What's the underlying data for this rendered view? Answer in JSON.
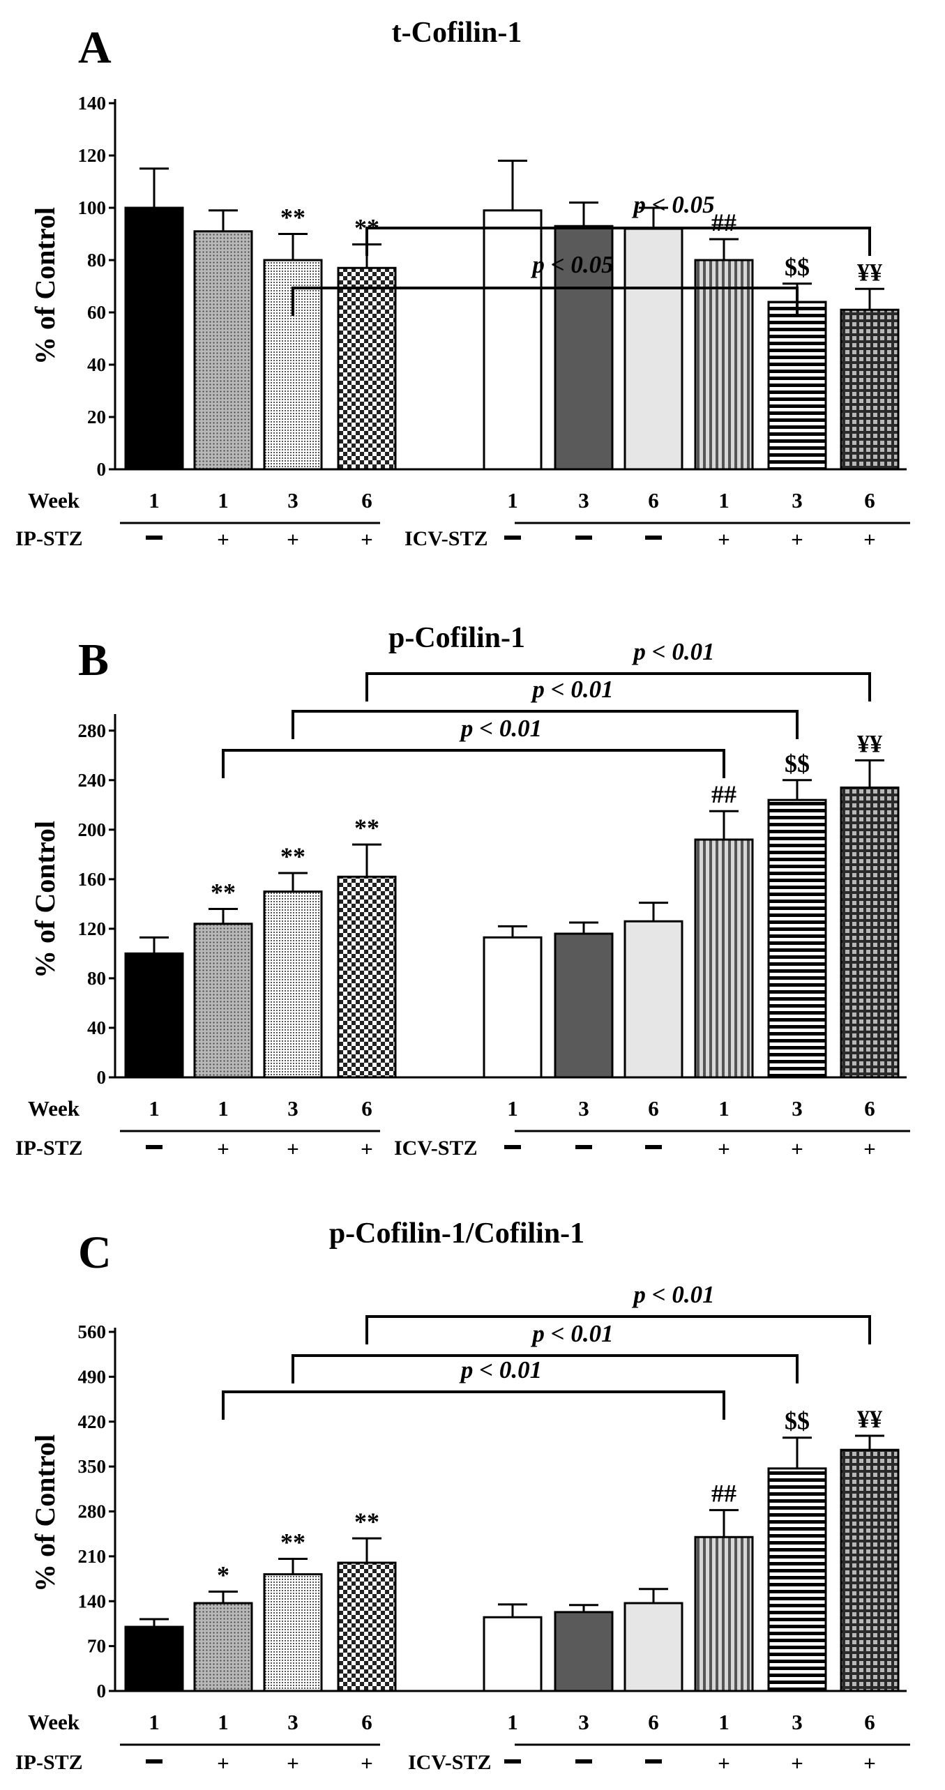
{
  "chart_data": [
    {
      "panel": "A",
      "type": "bar",
      "title": "t-Cofilin-1",
      "ylabel": "% of Control",
      "ylim": [
        0,
        140
      ],
      "ytick_step": 20,
      "row_labels": {
        "week": "Week",
        "ip": "IP-STZ",
        "icv": "ICV-STZ"
      },
      "groups": [
        {
          "name": "IP-STZ",
          "bars": [
            {
              "week": "1",
              "stz": "−",
              "value": 100,
              "error": 15,
              "sig": "",
              "pattern": "solid-black"
            },
            {
              "week": "1",
              "stz": "+",
              "value": 91,
              "error": 8,
              "sig": "",
              "pattern": "fine-dots"
            },
            {
              "week": "3",
              "stz": "+",
              "value": 80,
              "error": 10,
              "sig": "**",
              "pattern": "grid-dots"
            },
            {
              "week": "6",
              "stz": "+",
              "value": 77,
              "error": 9,
              "sig": "**",
              "pattern": "checker"
            }
          ]
        },
        {
          "name": "ICV-STZ",
          "bars": [
            {
              "week": "1",
              "stz": "−",
              "value": 99,
              "error": 19,
              "sig": "",
              "pattern": "white"
            },
            {
              "week": "3",
              "stz": "−",
              "value": 93,
              "error": 9,
              "sig": "",
              "pattern": "dark-grey"
            },
            {
              "week": "6",
              "stz": "−",
              "value": 92,
              "error": 8,
              "sig": "",
              "pattern": "light-grey"
            },
            {
              "week": "1",
              "stz": "+",
              "value": 80,
              "error": 8,
              "sig": "##",
              "pattern": "vertical-stripes"
            },
            {
              "week": "3",
              "stz": "+",
              "value": 64,
              "error": 7,
              "sig": "$$",
              "pattern": "horizontal-stripes"
            },
            {
              "week": "6",
              "stz": "+",
              "value": 61,
              "error": 8,
              "sig": "¥¥",
              "pattern": "grid-squares"
            }
          ]
        }
      ],
      "comparisons": [
        {
          "from_bar": 2,
          "to_bar": 8,
          "label": "p < 0.05"
        },
        {
          "from_bar": 3,
          "to_bar": 9,
          "label": "p < 0.05"
        }
      ]
    },
    {
      "panel": "B",
      "type": "bar",
      "title": "p-Cofilin-1",
      "ylabel": "% of Control",
      "ylim": [
        0,
        290
      ],
      "ytick_step": 40,
      "row_labels": {
        "week": "Week",
        "ip": "IP-STZ",
        "icv": "ICV-STZ"
      },
      "groups": [
        {
          "name": "IP-STZ",
          "bars": [
            {
              "week": "1",
              "stz": "−",
              "value": 100,
              "error": 13,
              "sig": "",
              "pattern": "solid-black"
            },
            {
              "week": "1",
              "stz": "+",
              "value": 124,
              "error": 12,
              "sig": "**",
              "pattern": "fine-dots"
            },
            {
              "week": "3",
              "stz": "+",
              "value": 150,
              "error": 15,
              "sig": "**",
              "pattern": "grid-dots"
            },
            {
              "week": "6",
              "stz": "+",
              "value": 162,
              "error": 26,
              "sig": "**",
              "pattern": "checker"
            }
          ]
        },
        {
          "name": "ICV-STZ",
          "bars": [
            {
              "week": "1",
              "stz": "−",
              "value": 113,
              "error": 9,
              "sig": "",
              "pattern": "white"
            },
            {
              "week": "3",
              "stz": "−",
              "value": 116,
              "error": 9,
              "sig": "",
              "pattern": "dark-grey"
            },
            {
              "week": "6",
              "stz": "−",
              "value": 126,
              "error": 15,
              "sig": "",
              "pattern": "light-grey"
            },
            {
              "week": "1",
              "stz": "+",
              "value": 192,
              "error": 23,
              "sig": "##",
              "pattern": "vertical-stripes"
            },
            {
              "week": "3",
              "stz": "+",
              "value": 224,
              "error": 16,
              "sig": "$$",
              "pattern": "horizontal-stripes"
            },
            {
              "week": "6",
              "stz": "+",
              "value": 234,
              "error": 22,
              "sig": "¥¥",
              "pattern": "grid-squares"
            }
          ]
        }
      ],
      "comparisons": [
        {
          "from_bar": 1,
          "to_bar": 7,
          "label": "p < 0.01"
        },
        {
          "from_bar": 2,
          "to_bar": 8,
          "label": "p < 0.01"
        },
        {
          "from_bar": 3,
          "to_bar": 9,
          "label": "p < 0.01"
        }
      ]
    },
    {
      "panel": "C",
      "type": "bar",
      "title": "p-Cofilin-1/Cofilin-1",
      "ylabel": "% of Control",
      "ylim": [
        0,
        560
      ],
      "ytick_step": 70,
      "row_labels": {
        "week": "Week",
        "ip": "IP-STZ",
        "icv": "ICV-STZ"
      },
      "groups": [
        {
          "name": "IP-STZ",
          "bars": [
            {
              "week": "1",
              "stz": "−",
              "value": 100,
              "error": 12,
              "sig": "",
              "pattern": "solid-black"
            },
            {
              "week": "1",
              "stz": "+",
              "value": 137,
              "error": 18,
              "sig": "*",
              "pattern": "fine-dots"
            },
            {
              "week": "3",
              "stz": "+",
              "value": 182,
              "error": 24,
              "sig": "**",
              "pattern": "grid-dots"
            },
            {
              "week": "6",
              "stz": "+",
              "value": 200,
              "error": 38,
              "sig": "**",
              "pattern": "checker"
            }
          ]
        },
        {
          "name": "ICV-STZ",
          "bars": [
            {
              "week": "1",
              "stz": "−",
              "value": 115,
              "error": 20,
              "sig": "",
              "pattern": "white"
            },
            {
              "week": "3",
              "stz": "−",
              "value": 123,
              "error": 11,
              "sig": "",
              "pattern": "dark-grey"
            },
            {
              "week": "6",
              "stz": "−",
              "value": 137,
              "error": 22,
              "sig": "",
              "pattern": "light-grey"
            },
            {
              "week": "1",
              "stz": "+",
              "value": 240,
              "error": 42,
              "sig": "##",
              "pattern": "vertical-stripes"
            },
            {
              "week": "3",
              "stz": "+",
              "value": 347,
              "error": 48,
              "sig": "$$",
              "pattern": "horizontal-stripes"
            },
            {
              "week": "6",
              "stz": "+",
              "value": 376,
              "error": 22,
              "sig": "¥¥",
              "pattern": "grid-squares"
            }
          ]
        }
      ],
      "comparisons": [
        {
          "from_bar": 1,
          "to_bar": 7,
          "label": "p < 0.01"
        },
        {
          "from_bar": 2,
          "to_bar": 8,
          "label": "p < 0.01"
        },
        {
          "from_bar": 3,
          "to_bar": 9,
          "label": "p < 0.01"
        }
      ]
    }
  ]
}
